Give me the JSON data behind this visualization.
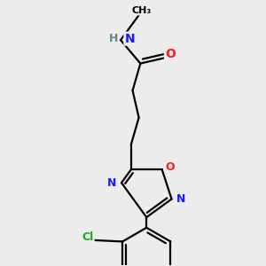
{
  "background_color": "#ececec",
  "atom_color_C": "#000000",
  "atom_color_N": "#1a1aff",
  "atom_color_O": "#ff1a1a",
  "atom_color_Cl": "#1aaa1a",
  "atom_color_H": "#5a8a8a",
  "bond_color": "#000000",
  "bond_width": 1.6,
  "figsize": [
    3.0,
    3.0
  ],
  "dpi": 100,
  "xlim": [
    -1.4,
    1.4
  ],
  "ylim": [
    -1.6,
    2.2
  ]
}
